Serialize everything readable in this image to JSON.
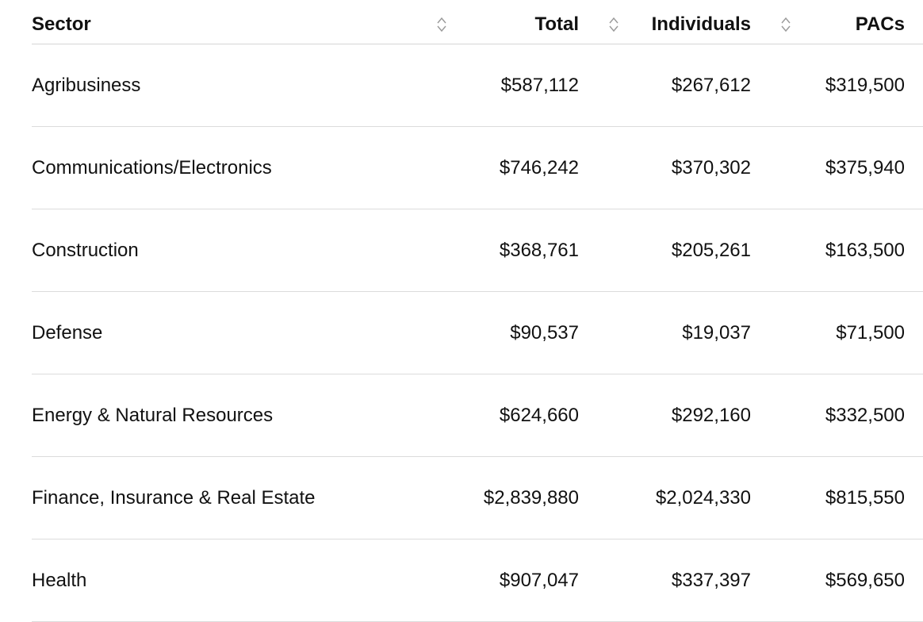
{
  "table": {
    "headers": {
      "sector": "Sector",
      "total": "Total",
      "individuals": "Individuals",
      "pacs": "PACs"
    },
    "rows": [
      {
        "sector": "Agribusiness",
        "total": "$587,112",
        "individuals": "$267,612",
        "pacs": "$319,500"
      },
      {
        "sector": "Communications/Electronics",
        "total": "$746,242",
        "individuals": "$370,302",
        "pacs": "$375,940"
      },
      {
        "sector": "Construction",
        "total": "$368,761",
        "individuals": "$205,261",
        "pacs": "$163,500"
      },
      {
        "sector": "Defense",
        "total": "$90,537",
        "individuals": "$19,037",
        "pacs": "$71,500"
      },
      {
        "sector": "Energy & Natural Resources",
        "total": "$624,660",
        "individuals": "$292,160",
        "pacs": "$332,500"
      },
      {
        "sector": "Finance, Insurance & Real Estate",
        "total": "$2,839,880",
        "individuals": "$2,024,330",
        "pacs": "$815,550"
      },
      {
        "sector": "Health",
        "total": "$907,047",
        "individuals": "$337,397",
        "pacs": "$569,650"
      }
    ]
  },
  "icons": {
    "sort": "sort-updown-icon"
  }
}
